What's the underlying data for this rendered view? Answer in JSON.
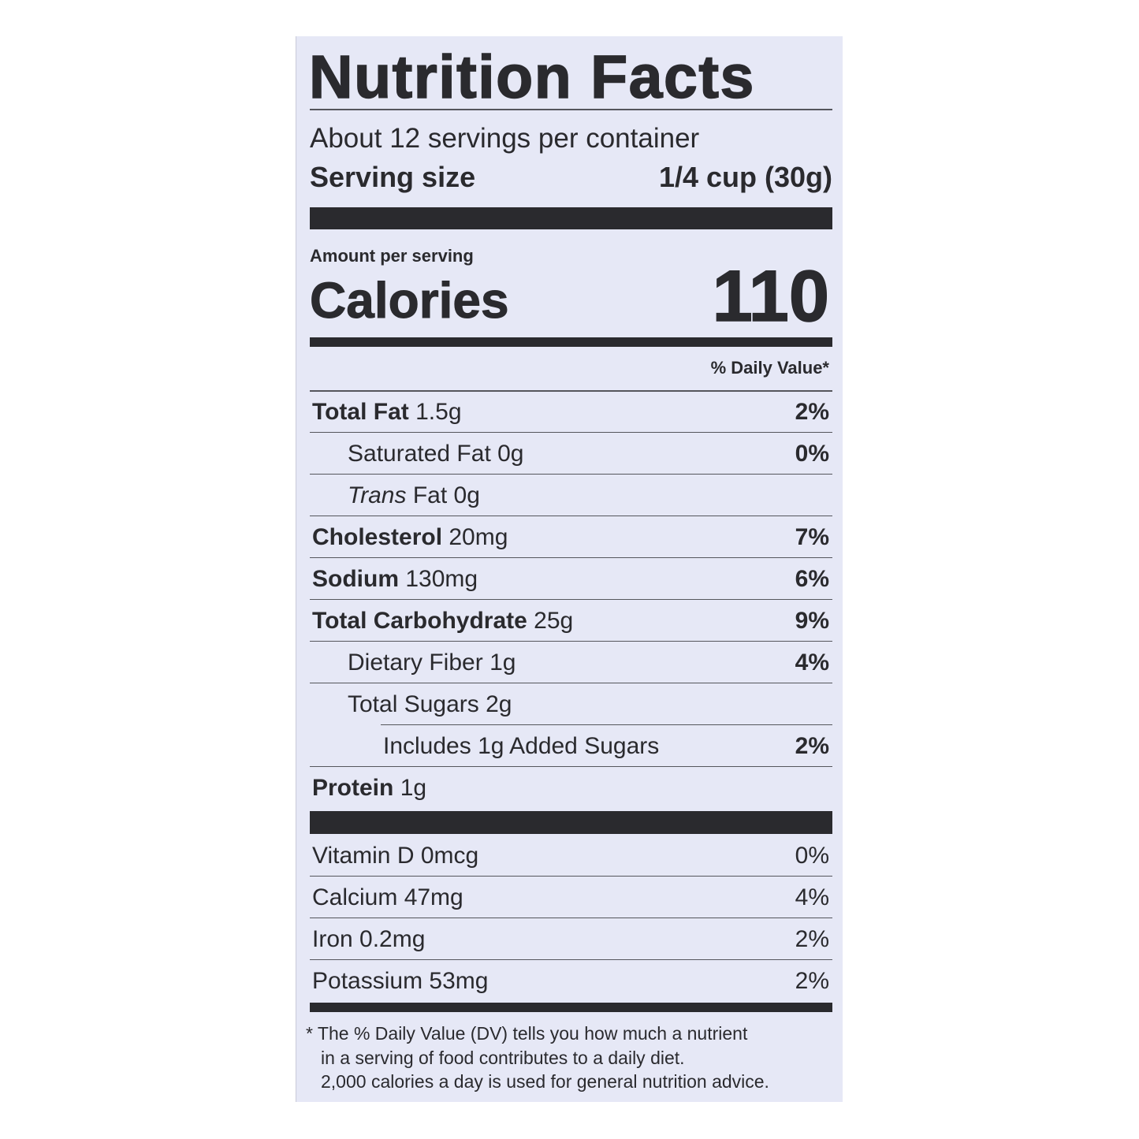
{
  "label": {
    "title": "Nutrition Facts",
    "servings_per_container": "About 12 servings per container",
    "serving_size_label": "Serving size",
    "serving_size_value": "1/4 cup (30g)",
    "amount_per_serving": "Amount per serving",
    "calories_label": "Calories",
    "calories_value": "110",
    "daily_value_header": "% Daily Value*",
    "nutrients": [
      {
        "name": "Total Fat",
        "amount": "1.5g",
        "dv": "2%",
        "bold": true,
        "indent": 0
      },
      {
        "name": "Saturated Fat",
        "amount": "0g",
        "dv": "0%",
        "bold": false,
        "indent": 1
      },
      {
        "name": "Trans",
        "name_suffix": "Fat",
        "amount": "0g",
        "dv": "",
        "bold": false,
        "italic": true,
        "indent": 1
      },
      {
        "name": "Cholesterol",
        "amount": "20mg",
        "dv": "7%",
        "bold": true,
        "indent": 0
      },
      {
        "name": "Sodium",
        "amount": "130mg",
        "dv": "6%",
        "bold": true,
        "indent": 0
      },
      {
        "name": "Total Carbohydrate",
        "amount": "25g",
        "dv": "9%",
        "bold": true,
        "indent": 0
      },
      {
        "name": "Dietary Fiber",
        "amount": "1g",
        "dv": "4%",
        "bold": false,
        "indent": 1
      },
      {
        "name": "Total Sugars",
        "amount": "2g",
        "dv": "",
        "bold": false,
        "indent": 1
      },
      {
        "name": "Includes 1g Added Sugars",
        "amount": "",
        "dv": "2%",
        "bold": false,
        "indent": 2
      },
      {
        "name": "Protein",
        "amount": "1g",
        "dv": "",
        "bold": true,
        "indent": 0
      }
    ],
    "vitamins": [
      {
        "name": "Vitamin D 0mcg",
        "dv": "0%"
      },
      {
        "name": "Calcium 47mg",
        "dv": "4%"
      },
      {
        "name": "Iron 0.2mg",
        "dv": "2%"
      },
      {
        "name": "Potassium 53mg",
        "dv": "2%"
      }
    ],
    "footnote": [
      "* The % Daily Value (DV) tells you how much a nutrient",
      "in a serving of food contributes to a daily diet.",
      "2,000 calories a day is used for general nutrition advice."
    ]
  },
  "colors": {
    "panel": "#e6e8f6",
    "ink": "#2a2a2e"
  }
}
